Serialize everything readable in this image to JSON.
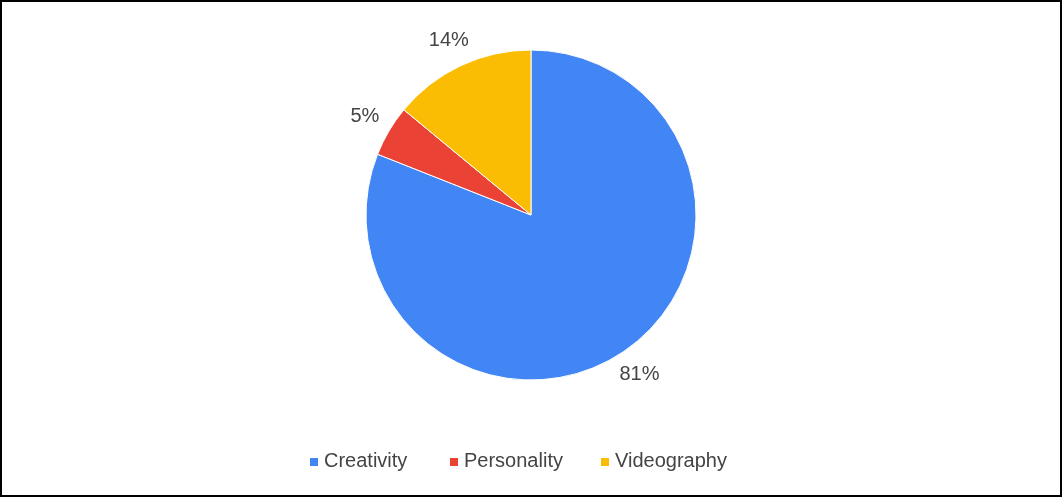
{
  "chart_data": {
    "type": "pie",
    "categories": [
      "Creativity",
      "Personality",
      "Videography"
    ],
    "values": [
      81,
      5,
      14
    ],
    "colors": [
      "#4285f4",
      "#ea4335",
      "#fbbc04"
    ],
    "value_labels": [
      "81%",
      "5%",
      "14%"
    ],
    "legend": "bottom"
  }
}
